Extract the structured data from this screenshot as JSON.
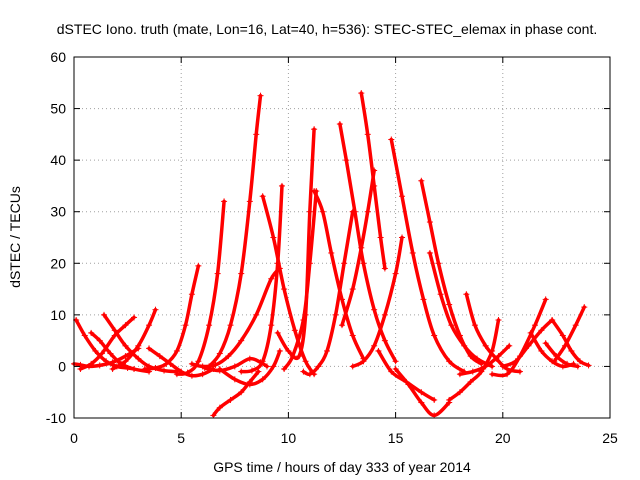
{
  "chart_data": {
    "type": "scatter",
    "title": "dSTEC Iono. truth (mate, Lon=16, Lat=40, h=536): STEC-STEC_elemax in phase cont.",
    "xlabel": "GPS time / hours of day 333 of year 2014",
    "ylabel": "dSTEC  / TECUs",
    "xlim": [
      0,
      25
    ],
    "ylim": [
      -10,
      60
    ],
    "xticks": [
      0,
      5,
      10,
      15,
      20,
      25
    ],
    "yticks": [
      -10,
      0,
      10,
      20,
      30,
      40,
      50,
      60
    ],
    "xtick_labels": [
      "0",
      "5",
      "10",
      "15",
      "20",
      "25"
    ],
    "ytick_labels": [
      "-10",
      "0",
      "10",
      "20",
      "30",
      "40",
      "50",
      "60"
    ],
    "grid": true,
    "marker": "plus",
    "color": "#ff0000",
    "series": [
      {
        "x": [
          0.0,
          0.3,
          0.7,
          1.2,
          1.8,
          2.4,
          3.0
        ],
        "y": [
          0.5,
          0.3,
          0.0,
          0.2,
          0.8,
          2.0,
          3.5
        ]
      },
      {
        "x": [
          0.1,
          0.5,
          1.0,
          1.5,
          2.0,
          2.5,
          2.8
        ],
        "y": [
          9,
          6,
          3,
          1,
          0,
          -0.3,
          -0.5
        ]
      },
      {
        "x": [
          0.3,
          0.8,
          1.3,
          1.9,
          2.4,
          2.8
        ],
        "y": [
          -0.5,
          0.5,
          2.5,
          6,
          8,
          9.5
        ]
      },
      {
        "x": [
          0.8,
          1.2,
          1.7,
          2.2,
          2.8,
          3.5
        ],
        "y": [
          6.5,
          5,
          2.5,
          0.5,
          -0.5,
          -1
        ]
      },
      {
        "x": [
          1.4,
          1.9,
          2.4,
          3.0,
          3.5,
          4.2,
          4.8
        ],
        "y": [
          10,
          7,
          4,
          1.5,
          0,
          -0.8,
          -1
        ]
      },
      {
        "x": [
          1.8,
          2.4,
          3.0,
          3.5,
          3.8
        ],
        "y": [
          -0.5,
          1,
          4,
          8,
          11
        ]
      },
      {
        "x": [
          3.5,
          4.0,
          4.5,
          5.0,
          5.5,
          6.0,
          6.5
        ],
        "y": [
          3.5,
          2,
          0.5,
          -1,
          -1.8,
          -1.5,
          -0.5
        ]
      },
      {
        "x": [
          3.3,
          3.8,
          4.3,
          4.8,
          5.2,
          5.5,
          5.8
        ],
        "y": [
          -0.5,
          -0.3,
          0.5,
          3,
          8,
          14,
          19.5
        ]
      },
      {
        "x": [
          4.8,
          5.3,
          5.8,
          6.3,
          6.7,
          7.0
        ],
        "y": [
          -1.5,
          -1.2,
          1,
          8,
          18,
          32
        ]
      },
      {
        "x": [
          5.5,
          6.0,
          6.6,
          7.2,
          7.8,
          8.5,
          9.2,
          9.6
        ],
        "y": [
          0.5,
          0,
          0.3,
          2,
          5,
          10,
          17,
          19
        ]
      },
      {
        "x": [
          6.1,
          6.8,
          7.5,
          8.2,
          8.7,
          9.0
        ],
        "y": [
          -0.3,
          -0.8,
          0,
          1.5,
          0.8,
          0
        ]
      },
      {
        "x": [
          6.3,
          6.8,
          7.3,
          7.8,
          8.2,
          8.5,
          8.7
        ],
        "y": [
          0,
          2.5,
          8,
          18,
          32,
          45,
          52.5
        ]
      },
      {
        "x": [
          6.5,
          6.8,
          7.3,
          7.8,
          8.2,
          8.6
        ],
        "y": [
          -9.5,
          -8,
          -6.5,
          -5,
          -3,
          -1
        ]
      },
      {
        "x": [
          6.8,
          7.5,
          8.2,
          8.8,
          9.3,
          9.6
        ],
        "y": [
          -0.5,
          -2.5,
          -3.5,
          -2.5,
          0,
          3
        ]
      },
      {
        "x": [
          7.8,
          8.3,
          8.8,
          9.2,
          9.5,
          9.7
        ],
        "y": [
          -1,
          -0.8,
          1,
          8,
          20,
          35
        ]
      },
      {
        "x": [
          8.8,
          9.3,
          9.8,
          10.3,
          10.8,
          11.2
        ],
        "y": [
          33,
          25,
          15,
          7,
          1,
          -1.5
        ]
      },
      {
        "x": [
          9.5,
          10.0,
          10.5,
          10.8,
          11.0,
          11.2
        ],
        "y": [
          6.5,
          3,
          2,
          10,
          30,
          46
        ]
      },
      {
        "x": [
          9.8,
          10.2,
          10.7,
          11.0,
          11.3
        ],
        "y": [
          -0.5,
          2,
          9,
          20,
          34
        ]
      },
      {
        "x": [
          10.7,
          11.0,
          11.4,
          11.8,
          12.2,
          12.6,
          13.0
        ],
        "y": [
          -1,
          -1.5,
          0,
          3,
          10,
          20,
          30
        ]
      },
      {
        "x": [
          11.2,
          11.6,
          12.0,
          12.5,
          13.0,
          13.5
        ],
        "y": [
          34,
          30,
          22,
          13,
          6,
          1.5
        ]
      },
      {
        "x": [
          12.4,
          12.7,
          13.1,
          13.5,
          14.0,
          14.5,
          15.0
        ],
        "y": [
          47,
          40,
          30,
          20,
          11,
          5,
          1
        ]
      },
      {
        "x": [
          13.4,
          13.7,
          14.0,
          14.3,
          14.5
        ],
        "y": [
          53,
          45,
          35,
          25,
          19
        ]
      },
      {
        "x": [
          12.5,
          13.0,
          13.4,
          13.7,
          14.0
        ],
        "y": [
          8,
          15,
          23,
          30,
          38
        ]
      },
      {
        "x": [
          13.0,
          13.5,
          14.0,
          14.5,
          15.0,
          15.3
        ],
        "y": [
          0,
          1,
          4,
          10,
          18,
          25
        ]
      },
      {
        "x": [
          14.2,
          14.8,
          15.5,
          16.2,
          16.8
        ],
        "y": [
          3,
          -1,
          -3,
          -5,
          -6.5
        ]
      },
      {
        "x": [
          14.8,
          15.3,
          15.8,
          16.3,
          16.8,
          17.5,
          18.2
        ],
        "y": [
          44,
          33,
          22,
          13,
          6,
          1,
          -1
        ]
      },
      {
        "x": [
          15.0,
          15.6,
          16.2,
          16.8,
          17.5
        ],
        "y": [
          -0.5,
          -3.5,
          -7,
          -9.5,
          -7
        ]
      },
      {
        "x": [
          16.2,
          16.6,
          17.0,
          17.5,
          18.0,
          18.5,
          19.0
        ],
        "y": [
          36,
          28,
          20,
          12,
          6,
          2,
          0.5
        ]
      },
      {
        "x": [
          16.6,
          17.1,
          17.6,
          18.2,
          18.8,
          19.5
        ],
        "y": [
          22,
          14,
          8,
          4,
          1.5,
          0
        ]
      },
      {
        "x": [
          17.5,
          18.0,
          18.5,
          19.0,
          19.5,
          19.8
        ],
        "y": [
          -6.5,
          -5,
          -3,
          -1,
          3,
          9
        ]
      },
      {
        "x": [
          18.0,
          18.6,
          19.2,
          19.8,
          20.3
        ],
        "y": [
          -1.5,
          -1,
          0,
          2,
          4
        ]
      },
      {
        "x": [
          18.3,
          18.7,
          19.2,
          19.7,
          20.2,
          20.8
        ],
        "y": [
          14,
          8,
          4,
          1.5,
          -0.5,
          -1
        ]
      },
      {
        "x": [
          19.5,
          20.2,
          20.8,
          21.5,
          22.0
        ],
        "y": [
          -1.5,
          -1.5,
          2,
          8,
          13
        ]
      },
      {
        "x": [
          20.0,
          20.6,
          21.2,
          21.8,
          22.3
        ],
        "y": [
          0,
          1,
          4,
          7,
          9
        ]
      },
      {
        "x": [
          21.3,
          21.8,
          22.3,
          22.8,
          23.3
        ],
        "y": [
          6.5,
          3,
          1,
          0,
          0.5
        ]
      },
      {
        "x": [
          22.0,
          22.5,
          23.0,
          23.5
        ],
        "y": [
          4.5,
          2,
          0.5,
          0
        ]
      },
      {
        "x": [
          22.3,
          22.8,
          23.2,
          23.6,
          24.0
        ],
        "y": [
          9,
          6,
          3,
          1,
          0.2
        ]
      },
      {
        "x": [
          22.4,
          22.9,
          23.4,
          23.8
        ],
        "y": [
          1,
          4,
          8,
          11.5
        ]
      }
    ]
  }
}
